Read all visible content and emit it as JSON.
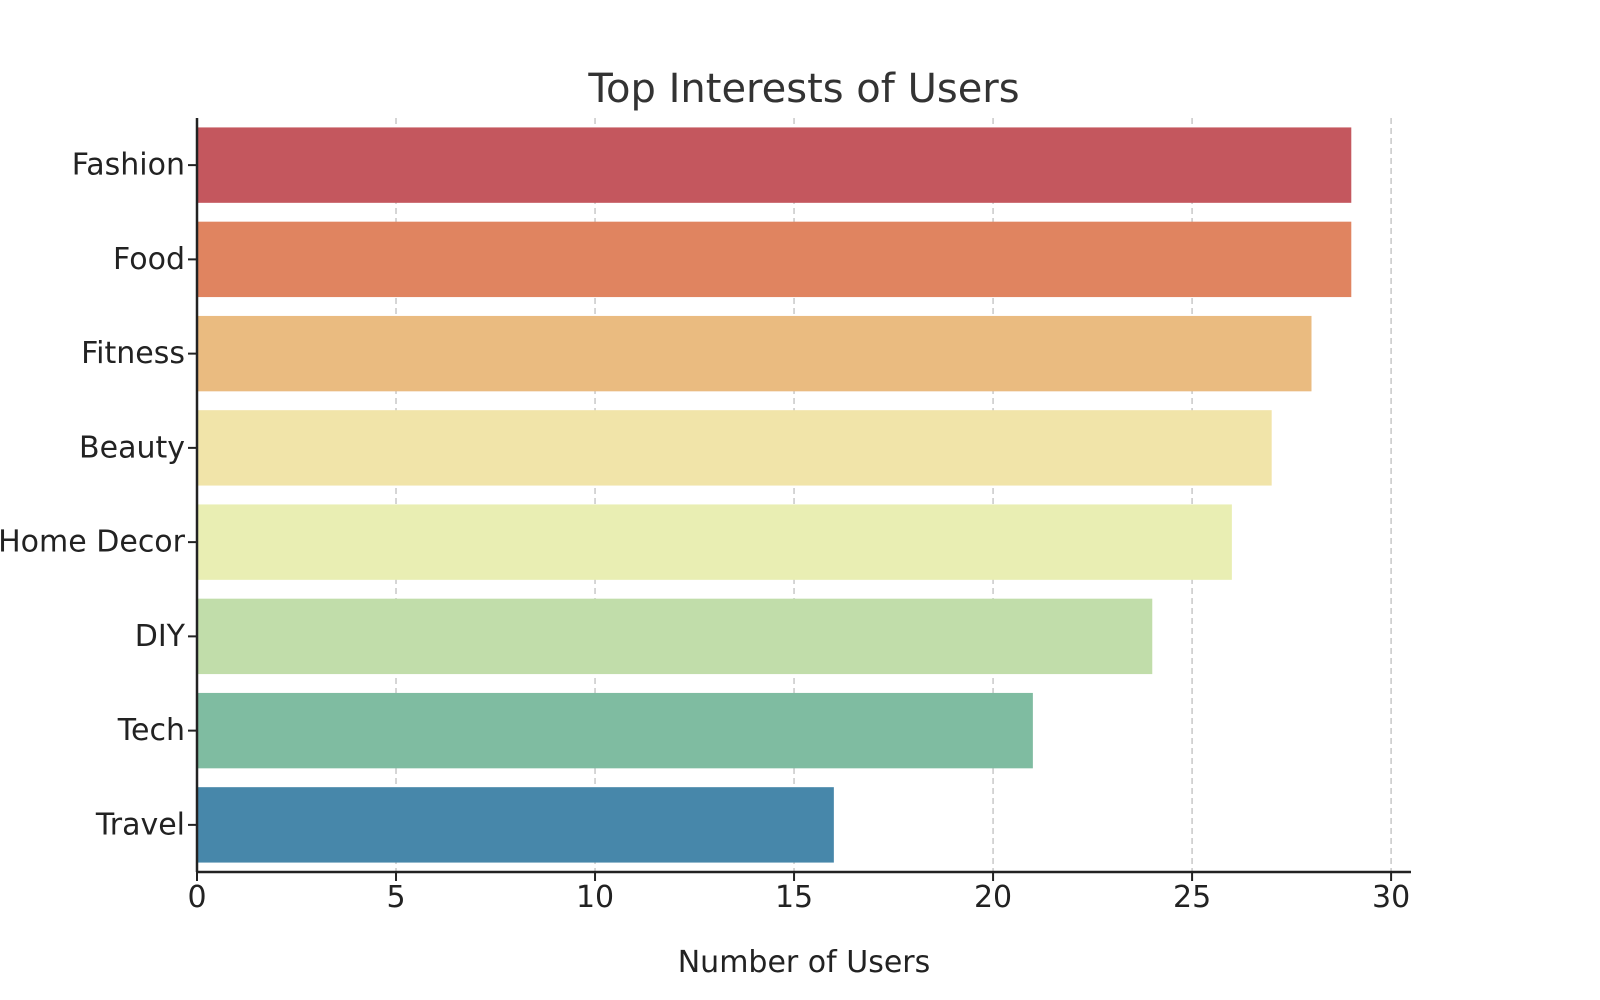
{
  "chart_data": {
    "type": "bar",
    "orientation": "horizontal",
    "title": "Top Interests of Users",
    "xlabel": "Number of Users",
    "ylabel": "",
    "categories": [
      "Fashion",
      "Food",
      "Fitness",
      "Beauty",
      "Home Decor",
      "DIY",
      "Tech",
      "Travel"
    ],
    "values": [
      29,
      29,
      28,
      27,
      26,
      24,
      21,
      16
    ],
    "colors": [
      "#c4575e",
      "#e08460",
      "#eabb80",
      "#f1e4a9",
      "#e9eeb3",
      "#c1ddaa",
      "#7fbca1",
      "#4787aa"
    ],
    "xlim": [
      0,
      30.5
    ],
    "xticks": [
      0,
      5,
      10,
      15,
      20,
      25,
      30
    ],
    "grid": {
      "x": true,
      "y": false,
      "style": "dashed"
    }
  }
}
